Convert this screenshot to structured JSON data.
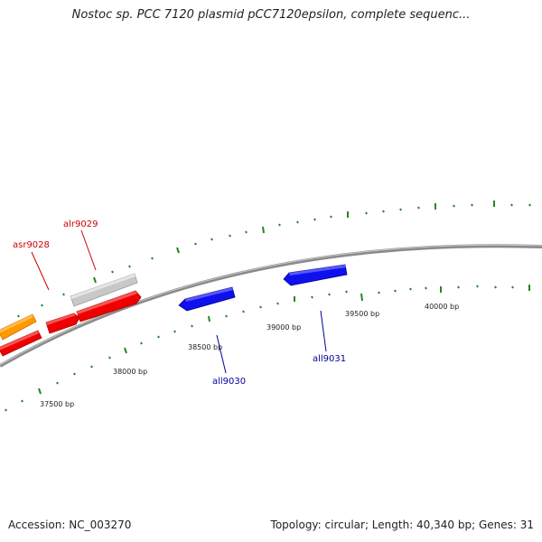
{
  "title": "Nostoc sp. PCC 7120 plasmid pCC7120epsilon, complete sequenc...",
  "footer": {
    "accession": "Accession: NC_003270",
    "summary": "Topology: circular; Length: 40,340 bp; Genes: 31"
  },
  "colors": {
    "forward_red": "#ee0000",
    "forward_orange": "#ff9900",
    "forward_gray": "#c8c8c8",
    "reverse_blue": "#1010ee",
    "label_forward": "#cc0000",
    "label_reverse": "#000099",
    "tick": "#228822",
    "backbone": "#888888"
  },
  "map": {
    "position_labels": [
      "37500 bp",
      "38000 bp",
      "38500 bp",
      "39000 bp",
      "39500 bp",
      "40000 bp"
    ],
    "genes": [
      {
        "name": "asr9028",
        "strand": "forward",
        "color": "forward_red",
        "labeled": true
      },
      {
        "name": "alr9029",
        "strand": "forward",
        "color": "forward_red",
        "labeled": true
      },
      {
        "name": "",
        "strand": "forward",
        "color": "forward_gray",
        "labeled": false
      },
      {
        "name": "",
        "strand": "forward",
        "color": "forward_orange",
        "labeled": false
      },
      {
        "name": "",
        "strand": "forward",
        "color": "forward_red",
        "labeled": false
      },
      {
        "name": "all9030",
        "strand": "reverse",
        "color": "reverse_blue",
        "labeled": true
      },
      {
        "name": "all9031",
        "strand": "reverse",
        "color": "reverse_blue",
        "labeled": true
      }
    ]
  }
}
